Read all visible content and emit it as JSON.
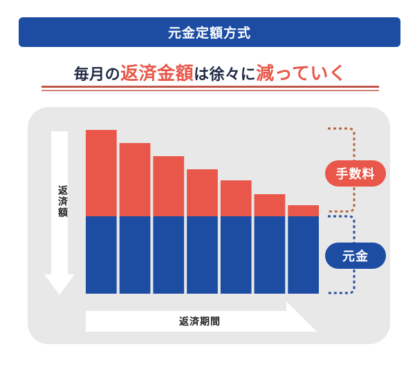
{
  "banner": {
    "title": "元金定額方式"
  },
  "headline": {
    "parts": [
      {
        "text": "毎月の",
        "emphasis": false
      },
      {
        "text": "返済金額",
        "emphasis": true
      },
      {
        "text": "は徐々に",
        "emphasis": false
      },
      {
        "text": "減っていく",
        "emphasis": true
      }
    ]
  },
  "legend": {
    "fee_label": "手数料",
    "principal_label": "元金"
  },
  "axes": {
    "y_label": "返済額",
    "x_label": "返済期間"
  },
  "colors": {
    "fee": "#e8574a",
    "principal": "#1c4da3",
    "banner": "#1c4da3",
    "panel": "#e8e8e8",
    "arrow": "#ffffff",
    "bracket_fee": "#b5663e",
    "bracket_principal": "#2a4fa0"
  },
  "chart_data": {
    "type": "bar",
    "stacked": true,
    "categories": [
      "",
      "",
      "",
      "",
      "",
      "",
      ""
    ],
    "series": [
      {
        "name": "元金",
        "values": [
          112,
          112,
          112,
          112,
          112,
          112,
          112
        ]
      },
      {
        "name": "手数料",
        "values": [
          125,
          106,
          87,
          68,
          52,
          32,
          16
        ]
      }
    ],
    "xlabel": "返済期間",
    "ylabel": "返済額",
    "ylim": [
      0,
      240
    ]
  }
}
